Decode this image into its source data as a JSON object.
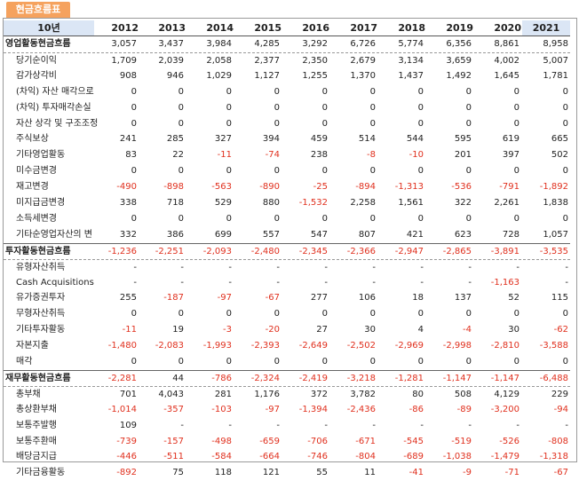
{
  "tab_label": "현금흐름표",
  "header": {
    "label": "10년",
    "years": [
      "2012",
      "2013",
      "2014",
      "2015",
      "2016",
      "2017",
      "2018",
      "2019",
      "2020",
      "2021"
    ]
  },
  "rows": [
    {
      "label": "영업활동현금흐름",
      "main": true,
      "values": [
        "3,057",
        "3,437",
        "3,984",
        "4,285",
        "3,292",
        "6,726",
        "5,774",
        "6,356",
        "8,861",
        "8,958"
      ]
    },
    {
      "label": "당기순이익",
      "values": [
        "1,709",
        "2,039",
        "2,058",
        "2,377",
        "2,350",
        "2,679",
        "3,134",
        "3,659",
        "4,002",
        "5,007"
      ]
    },
    {
      "label": "감가상각비",
      "values": [
        "908",
        "946",
        "1,029",
        "1,127",
        "1,255",
        "1,370",
        "1,437",
        "1,492",
        "1,645",
        "1,781"
      ]
    },
    {
      "label": "(차익) 자산 매각으로",
      "values": [
        "0",
        "0",
        "0",
        "0",
        "0",
        "0",
        "0",
        "0",
        "0",
        "0"
      ]
    },
    {
      "label": "(차익) 투자매각손실",
      "values": [
        "0",
        "0",
        "0",
        "0",
        "0",
        "0",
        "0",
        "0",
        "0",
        "0"
      ]
    },
    {
      "label": "자산 상각 및 구조조정",
      "values": [
        "0",
        "0",
        "0",
        "0",
        "0",
        "0",
        "0",
        "0",
        "0",
        "0"
      ]
    },
    {
      "label": "주식보상",
      "values": [
        "241",
        "285",
        "327",
        "394",
        "459",
        "514",
        "544",
        "595",
        "619",
        "665"
      ]
    },
    {
      "label": "기타영업활동",
      "values": [
        "83",
        "22",
        "-11",
        "-74",
        "238",
        "-8",
        "-10",
        "201",
        "397",
        "502"
      ]
    },
    {
      "label": "미수금변경",
      "values": [
        "0",
        "0",
        "0",
        "0",
        "0",
        "0",
        "0",
        "0",
        "0",
        "0"
      ]
    },
    {
      "label": "재고변경",
      "values": [
        "-490",
        "-898",
        "-563",
        "-890",
        "-25",
        "-894",
        "-1,313",
        "-536",
        "-791",
        "-1,892"
      ]
    },
    {
      "label": "미지급금변경",
      "values": [
        "338",
        "718",
        "529",
        "880",
        "-1,532",
        "2,258",
        "1,561",
        "322",
        "2,261",
        "1,838"
      ]
    },
    {
      "label": "소득세변경",
      "values": [
        "0",
        "0",
        "0",
        "0",
        "0",
        "0",
        "0",
        "0",
        "0",
        "0"
      ]
    },
    {
      "label": "기타순영업자산의 변",
      "values": [
        "332",
        "386",
        "699",
        "557",
        "547",
        "807",
        "421",
        "623",
        "728",
        "1,057"
      ]
    },
    {
      "label": "투자활동현금흐름",
      "main": true,
      "values": [
        "-1,236",
        "-2,251",
        "-2,093",
        "-2,480",
        "-2,345",
        "-2,366",
        "-2,947",
        "-2,865",
        "-3,891",
        "-3,535"
      ]
    },
    {
      "label": "유형자산취득",
      "values": [
        "-",
        "-",
        "-",
        "-",
        "-",
        "-",
        "-",
        "-",
        "-",
        "-"
      ]
    },
    {
      "label": "Cash Acquisitions",
      "values": [
        "-",
        "-",
        "-",
        "-",
        "-",
        "-",
        "-",
        "-",
        "-1,163",
        "-"
      ]
    },
    {
      "label": "유가증권투자",
      "values": [
        "255",
        "-187",
        "-97",
        "-67",
        "277",
        "106",
        "18",
        "137",
        "52",
        "115"
      ]
    },
    {
      "label": "무형자산취득",
      "values": [
        "0",
        "0",
        "0",
        "0",
        "0",
        "0",
        "0",
        "0",
        "0",
        "0"
      ]
    },
    {
      "label": "기타투자활동",
      "values": [
        "-11",
        "19",
        "-3",
        "-20",
        "27",
        "30",
        "4",
        "-4",
        "30",
        "-62"
      ]
    },
    {
      "label": "자본지출",
      "values": [
        "-1,480",
        "-2,083",
        "-1,993",
        "-2,393",
        "-2,649",
        "-2,502",
        "-2,969",
        "-2,998",
        "-2,810",
        "-3,588"
      ]
    },
    {
      "label": "매각",
      "values": [
        "0",
        "0",
        "0",
        "0",
        "0",
        "0",
        "0",
        "0",
        "0",
        "0"
      ]
    },
    {
      "label": "재무활동현금흐름",
      "main": true,
      "values": [
        "-2,281",
        "44",
        "-786",
        "-2,324",
        "-2,419",
        "-3,218",
        "-1,281",
        "-1,147",
        "-1,147",
        "-6,488"
      ]
    },
    {
      "label": "총부채",
      "values": [
        "701",
        "4,043",
        "281",
        "1,176",
        "372",
        "3,782",
        "80",
        "508",
        "4,129",
        "229"
      ]
    },
    {
      "label": "총상환부채",
      "values": [
        "-1,014",
        "-357",
        "-103",
        "-97",
        "-1,394",
        "-2,436",
        "-86",
        "-89",
        "-3,200",
        "-94"
      ]
    },
    {
      "label": "보통주발행",
      "values": [
        "109",
        "-",
        "-",
        "-",
        "-",
        "-",
        "-",
        "-",
        "-",
        "-"
      ]
    },
    {
      "label": "보통주환매",
      "values": [
        "-739",
        "-157",
        "-498",
        "-659",
        "-706",
        "-671",
        "-545",
        "-519",
        "-526",
        "-808"
      ]
    },
    {
      "label": "배당금지급",
      "values": [
        "-446",
        "-511",
        "-584",
        "-664",
        "-746",
        "-804",
        "-689",
        "-1,038",
        "-1,479",
        "-1,318"
      ]
    },
    {
      "label": "기타금융활동",
      "values": [
        "-892",
        "75",
        "118",
        "121",
        "55",
        "11",
        "-41",
        "-9",
        "-71",
        "-67"
      ]
    }
  ]
}
